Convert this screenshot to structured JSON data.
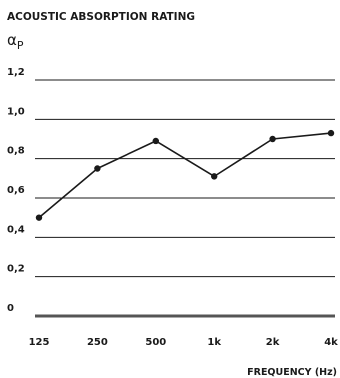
{
  "chart_data": {
    "type": "line",
    "title": "ACOUSTIC ABSORPTION RATING",
    "ylabel_symbol_main": "α",
    "ylabel_symbol_sub": "P",
    "xlabel": "FREQUENCY (Hz)",
    "categories": [
      "125",
      "250",
      "500",
      "1k",
      "2k",
      "4k"
    ],
    "values": [
      0.5,
      0.75,
      0.89,
      0.71,
      0.9,
      0.93
    ],
    "yticks": [
      {
        "value": 0,
        "label": "0"
      },
      {
        "value": 0.2,
        "label": "0,2"
      },
      {
        "value": 0.4,
        "label": "0,4"
      },
      {
        "value": 0.6,
        "label": "0,6"
      },
      {
        "value": 0.8,
        "label": "0,8"
      },
      {
        "value": 1.0,
        "label": "1,0"
      },
      {
        "value": 1.2,
        "label": "1,2"
      }
    ],
    "ylim": [
      0,
      1.2
    ],
    "grid": true,
    "colors": {
      "line": "#1a1a1a",
      "grid": "#1a1a1a",
      "baseline": "#555555"
    }
  }
}
